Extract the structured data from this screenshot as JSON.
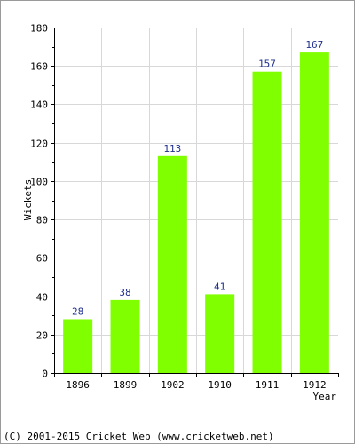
{
  "chart_data": {
    "type": "bar",
    "title": "",
    "xlabel": "Year",
    "ylabel": "Wickets",
    "categories": [
      "1896",
      "1899",
      "1902",
      "1910",
      "1911",
      "1912"
    ],
    "values": [
      28,
      38,
      113,
      41,
      157,
      167
    ],
    "ylim": [
      0,
      180
    ],
    "yticks": [
      0,
      20,
      40,
      60,
      80,
      100,
      120,
      140,
      160,
      180
    ],
    "grid": true,
    "legend": "none",
    "data_labels": true,
    "colors": {
      "bar": "#80ff00",
      "value_label": "#1f2f8f",
      "grid": "#d8d8d8"
    }
  },
  "footer": "(C) 2001-2015 Cricket Web (www.cricketweb.net)"
}
